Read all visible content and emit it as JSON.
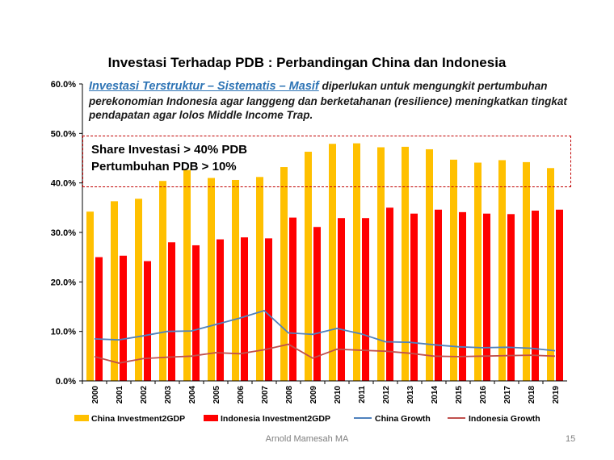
{
  "slide": {
    "title": "Investasi Terhadap PDB : Perbandingan China dan Indonesia",
    "annotation_emph": "Investasi Terstruktur – Sistematis – Masif",
    "annotation_rest": " diperlukan untuk mengungkit pertumbuhan perekonomian Indonesia agar langgeng dan berketahanan (resilience)  meningkatkan tingkat pendapatan agar lolos Middle Income Trap.",
    "box_line1": "Share Investasi > 40% PDB",
    "box_line2": "Pertumbuhan PDB > 10%",
    "footer_author": "Arnold Mamesah MA",
    "page_number": "15"
  },
  "colors": {
    "china_bar": "#ffc000",
    "indonesia_bar": "#ff0000",
    "china_line": "#4f81bd",
    "indonesia_line": "#c0504d",
    "box_border": "#c00000"
  },
  "chart_data": {
    "type": "bar",
    "categories": [
      "2000",
      "2001",
      "2002",
      "2003",
      "2004",
      "2005",
      "2006",
      "2007",
      "2008",
      "2009",
      "2010",
      "2011",
      "2012",
      "2013",
      "2014",
      "2015",
      "2016",
      "2017",
      "2018",
      "2019"
    ],
    "series": [
      {
        "name": "China Investment2GDP",
        "type": "bar",
        "values": [
          34.2,
          36.3,
          36.8,
          40.4,
          42.6,
          41.0,
          40.6,
          41.2,
          43.2,
          46.3,
          47.9,
          48.0,
          47.2,
          47.3,
          46.8,
          44.7,
          44.1,
          44.6,
          44.2,
          43.0
        ]
      },
      {
        "name": "Indonesia Investment2GDP",
        "type": "bar",
        "values": [
          25.0,
          25.3,
          24.2,
          28.0,
          27.4,
          28.6,
          29.0,
          28.8,
          33.0,
          31.1,
          32.9,
          32.9,
          35.0,
          33.8,
          34.6,
          34.1,
          33.8,
          33.7,
          34.4,
          34.6
        ]
      },
      {
        "name": "China Growth",
        "type": "line",
        "values": [
          8.5,
          8.3,
          9.1,
          10.0,
          10.1,
          11.4,
          12.7,
          14.2,
          9.7,
          9.4,
          10.6,
          9.5,
          7.9,
          7.8,
          7.3,
          6.9,
          6.7,
          6.8,
          6.6,
          6.1
        ]
      },
      {
        "name": "Indonesia Growth",
        "type": "line",
        "values": [
          4.9,
          3.6,
          4.5,
          4.8,
          5.0,
          5.7,
          5.5,
          6.3,
          7.4,
          4.6,
          6.4,
          6.2,
          6.0,
          5.6,
          5.0,
          4.9,
          5.0,
          5.1,
          5.2,
          5.0
        ]
      }
    ],
    "yticks": [
      "0.0%",
      "10.0%",
      "20.0%",
      "30.0%",
      "40.0%",
      "50.0%",
      "60.0%"
    ],
    "ylim": [
      0,
      60
    ],
    "grid": false,
    "legend_position": "bottom"
  }
}
